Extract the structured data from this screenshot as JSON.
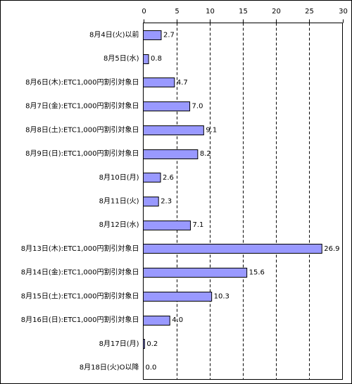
{
  "chart_data": {
    "type": "bar",
    "orientation": "horizontal",
    "categories": [
      "8月4日(火)以前",
      "8月5日(水)",
      "8月6日(木):ETC1,000円割引対象日",
      "8月7日(金):ETC1,000円割引対象日",
      "8月8日(土):ETC1,000円割引対象日",
      "8月9日(日):ETC1,000円割引対象日",
      "8月10日(月)",
      "8月11日(火)",
      "8月12日(水)",
      "8月13日(木):ETC1,000円割引対象日",
      "8月14日(金):ETC1,000円割引対象日",
      "8月15日(土):ETC1,000円割引対象日",
      "8月16日(日):ETC1,000円割引対象日",
      "8月17日(月)",
      "8月18日(火)O以降"
    ],
    "values": [
      2.7,
      0.8,
      4.7,
      7.0,
      9.1,
      8.2,
      2.6,
      2.3,
      7.1,
      26.9,
      15.6,
      10.3,
      4.0,
      0.2,
      0.0
    ],
    "value_labels": [
      "2.7",
      "0.8",
      "4.7",
      "7.0",
      "9.1",
      "8.2",
      "2.6",
      "2.3",
      "7.1",
      "26.9",
      "15.6",
      "10.3",
      "4.0",
      "0.2",
      "0.0"
    ],
    "x_ticks": [
      0,
      5,
      10,
      15,
      20,
      25,
      30
    ],
    "x_tick_labels": [
      "0",
      "5",
      "10",
      "15",
      "20",
      "25",
      "30"
    ],
    "xlim": [
      0,
      30
    ],
    "x_axis_position": "top",
    "grid": "vertical-dashed",
    "legend": "none",
    "title": "",
    "xlabel": "",
    "ylabel": "",
    "colors": {
      "bar": "#9999ff",
      "bar_border": "#000000",
      "grid": "#000000"
    }
  }
}
